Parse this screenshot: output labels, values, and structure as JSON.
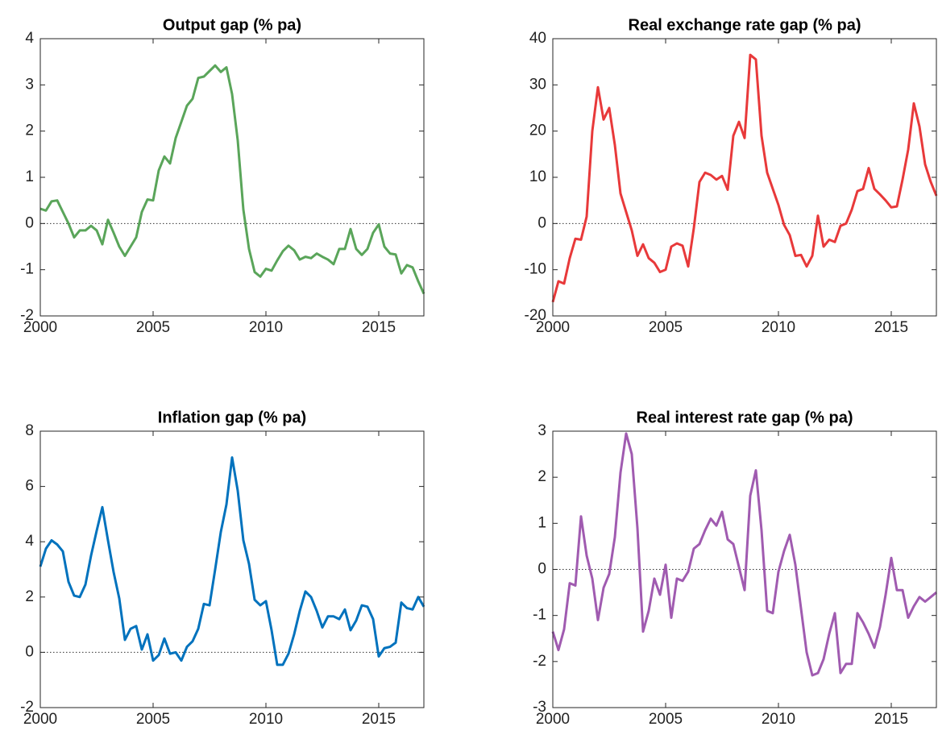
{
  "chart_data": [
    {
      "type": "line",
      "title": "Output gap (% pa)",
      "x": [
        2000,
        2000.25,
        2000.5,
        2000.75,
        2001,
        2001.25,
        2001.5,
        2001.75,
        2002,
        2002.25,
        2002.5,
        2002.75,
        2003,
        2003.25,
        2003.5,
        2003.75,
        2004,
        2004.25,
        2004.5,
        2004.75,
        2005,
        2005.25,
        2005.5,
        2005.75,
        2006,
        2006.25,
        2006.5,
        2006.75,
        2007,
        2007.25,
        2007.5,
        2007.75,
        2008,
        2008.25,
        2008.5,
        2008.75,
        2009,
        2009.25,
        2009.5,
        2009.75,
        2010,
        2010.25,
        2010.5,
        2010.75,
        2011,
        2011.25,
        2011.5,
        2011.75,
        2012,
        2012.25,
        2012.5,
        2012.75,
        2013,
        2013.25,
        2013.5,
        2013.75,
        2014,
        2014.25,
        2014.5,
        2014.75,
        2015,
        2015.25,
        2015.5,
        2015.75,
        2016,
        2016.25,
        2016.5,
        2016.75,
        2017
      ],
      "series": [
        {
          "color": "#5aa55a",
          "values": [
            0.32,
            0.28,
            0.48,
            0.5,
            0.25,
            0.0,
            -0.3,
            -0.15,
            -0.15,
            -0.05,
            -0.15,
            -0.45,
            0.08,
            -0.2,
            -0.5,
            -0.7,
            -0.5,
            -0.3,
            0.25,
            0.52,
            0.5,
            1.15,
            1.45,
            1.3,
            1.85,
            2.2,
            2.55,
            2.7,
            3.15,
            3.18,
            3.3,
            3.42,
            3.28,
            3.38,
            2.8,
            1.8,
            0.3,
            -0.55,
            -1.05,
            -1.15,
            -0.98,
            -1.02,
            -0.8,
            -0.6,
            -0.48,
            -0.58,
            -0.78,
            -0.72,
            -0.75,
            -0.65,
            -0.72,
            -0.78,
            -0.88,
            -0.55,
            -0.55,
            -0.12,
            -0.55,
            -0.68,
            -0.55,
            -0.2,
            -0.02,
            -0.5,
            -0.65,
            -0.67,
            -1.08,
            -0.9,
            -0.95,
            -1.25,
            -1.52
          ]
        }
      ],
      "xlim": [
        2000,
        2017
      ],
      "xticks": [
        2000,
        2005,
        2010,
        2015
      ],
      "ylim": [
        -2,
        4
      ],
      "yticks": [
        -2,
        -1,
        0,
        1,
        2,
        3,
        4
      ]
    },
    {
      "type": "line",
      "title": "Real exchange rate gap (% pa)",
      "x": [
        2000,
        2000.25,
        2000.5,
        2000.75,
        2001,
        2001.25,
        2001.5,
        2001.75,
        2002,
        2002.25,
        2002.5,
        2002.75,
        2003,
        2003.25,
        2003.5,
        2003.75,
        2004,
        2004.25,
        2004.5,
        2004.75,
        2005,
        2005.25,
        2005.5,
        2005.75,
        2006,
        2006.25,
        2006.5,
        2006.75,
        2007,
        2007.25,
        2007.5,
        2007.75,
        2008,
        2008.25,
        2008.5,
        2008.75,
        2009,
        2009.25,
        2009.5,
        2009.75,
        2010,
        2010.25,
        2010.5,
        2010.75,
        2011,
        2011.25,
        2011.5,
        2011.75,
        2012,
        2012.25,
        2012.5,
        2012.75,
        2013,
        2013.25,
        2013.5,
        2013.75,
        2014,
        2014.25,
        2014.5,
        2014.75,
        2015,
        2015.25,
        2015.5,
        2015.75,
        2016,
        2016.25,
        2016.5,
        2016.75,
        2017
      ],
      "series": [
        {
          "color": "#e8393a",
          "values": [
            -17,
            -12.5,
            -13,
            -7.5,
            -3.3,
            -3.5,
            1.5,
            20,
            29.5,
            22.5,
            25,
            17,
            6.5,
            2.5,
            -1.5,
            -7,
            -4.5,
            -7.5,
            -8.5,
            -10.5,
            -10,
            -5,
            -4.3,
            -4.8,
            -9.3,
            -1,
            9,
            11,
            10.5,
            9.5,
            10.3,
            7.3,
            19,
            22,
            18.5,
            36.5,
            35.5,
            19,
            11,
            7.5,
            4,
            -0.3,
            -2.5,
            -7,
            -6.8,
            -9.3,
            -7,
            1.7,
            -5,
            -3.5,
            -4,
            -0.5,
            0,
            3,
            7,
            7.5,
            12,
            7.5,
            6.3,
            5,
            3.5,
            3.7,
            9.5,
            16,
            26,
            21,
            12.8,
            9,
            6
          ]
        }
      ],
      "xlim": [
        2000,
        2017
      ],
      "xticks": [
        2000,
        2005,
        2010,
        2015
      ],
      "ylim": [
        -20,
        40
      ],
      "yticks": [
        -20,
        -10,
        0,
        10,
        20,
        30,
        40
      ]
    },
    {
      "type": "line",
      "title": "Inflation gap (% pa)",
      "x": [
        2000,
        2000.25,
        2000.5,
        2000.75,
        2001,
        2001.25,
        2001.5,
        2001.75,
        2002,
        2002.25,
        2002.5,
        2002.75,
        2003,
        2003.25,
        2003.5,
        2003.75,
        2004,
        2004.25,
        2004.5,
        2004.75,
        2005,
        2005.25,
        2005.5,
        2005.75,
        2006,
        2006.25,
        2006.5,
        2006.75,
        2007,
        2007.25,
        2007.5,
        2007.75,
        2008,
        2008.25,
        2008.5,
        2008.75,
        2009,
        2009.25,
        2009.5,
        2009.75,
        2010,
        2010.25,
        2010.5,
        2010.75,
        2011,
        2011.25,
        2011.5,
        2011.75,
        2012,
        2012.25,
        2012.5,
        2012.75,
        2013,
        2013.25,
        2013.5,
        2013.75,
        2014,
        2014.25,
        2014.5,
        2014.75,
        2015,
        2015.25,
        2015.5,
        2015.75,
        2016,
        2016.25,
        2016.5,
        2016.75,
        2017
      ],
      "series": [
        {
          "color": "#0072bd",
          "values": [
            3.1,
            3.75,
            4.05,
            3.9,
            3.65,
            2.55,
            2.05,
            2.0,
            2.45,
            3.5,
            4.4,
            5.25,
            4.05,
            2.9,
            1.95,
            0.45,
            0.85,
            0.95,
            0.1,
            0.65,
            -0.3,
            -0.1,
            0.5,
            -0.05,
            0.0,
            -0.3,
            0.2,
            0.4,
            0.85,
            1.75,
            1.7,
            3.0,
            4.35,
            5.35,
            7.05,
            5.85,
            4.05,
            3.2,
            1.9,
            1.7,
            1.85,
            0.8,
            -0.45,
            -0.45,
            -0.05,
            0.65,
            1.5,
            2.2,
            2.0,
            1.5,
            0.9,
            1.3,
            1.3,
            1.2,
            1.55,
            0.8,
            1.15,
            1.7,
            1.65,
            1.2,
            -0.15,
            0.15,
            0.2,
            0.35,
            1.8,
            1.6,
            1.55,
            2.0,
            1.65
          ]
        }
      ],
      "xlim": [
        2000,
        2017
      ],
      "xticks": [
        2000,
        2005,
        2010,
        2015
      ],
      "ylim": [
        -2,
        8
      ],
      "yticks": [
        -2,
        0,
        2,
        4,
        6,
        8
      ]
    },
    {
      "type": "line",
      "title": "Real interest rate gap (% pa)",
      "x": [
        2000,
        2000.25,
        2000.5,
        2000.75,
        2001,
        2001.25,
        2001.5,
        2001.75,
        2002,
        2002.25,
        2002.5,
        2002.75,
        2003,
        2003.25,
        2003.5,
        2003.75,
        2004,
        2004.25,
        2004.5,
        2004.75,
        2005,
        2005.25,
        2005.5,
        2005.75,
        2006,
        2006.25,
        2006.5,
        2006.75,
        2007,
        2007.25,
        2007.5,
        2007.75,
        2008,
        2008.25,
        2008.5,
        2008.75,
        2009,
        2009.25,
        2009.5,
        2009.75,
        2010,
        2010.25,
        2010.5,
        2010.75,
        2011,
        2011.25,
        2011.5,
        2011.75,
        2012,
        2012.25,
        2012.5,
        2012.75,
        2013,
        2013.25,
        2013.5,
        2013.75,
        2014,
        2014.25,
        2014.5,
        2014.75,
        2015,
        2015.25,
        2015.5,
        2015.75,
        2016,
        2016.25,
        2016.5,
        2016.75,
        2017
      ],
      "series": [
        {
          "color": "#a05bb0",
          "values": [
            -1.35,
            -1.75,
            -1.3,
            -0.3,
            -0.35,
            1.15,
            0.3,
            -0.2,
            -1.1,
            -0.4,
            -0.1,
            0.7,
            2.1,
            2.95,
            2.5,
            0.9,
            -1.35,
            -0.9,
            -0.2,
            -0.55,
            0.1,
            -1.05,
            -0.2,
            -0.25,
            -0.05,
            0.45,
            0.55,
            0.85,
            1.1,
            0.95,
            1.25,
            0.65,
            0.55,
            0.05,
            -0.45,
            1.6,
            2.15,
            0.85,
            -0.9,
            -0.95,
            -0.05,
            0.4,
            0.75,
            0.1,
            -0.85,
            -1.8,
            -2.3,
            -2.25,
            -1.95,
            -1.4,
            -0.95,
            -2.25,
            -2.05,
            -2.05,
            -0.95,
            -1.15,
            -1.4,
            -1.7,
            -1.25,
            -0.55,
            0.25,
            -0.45,
            -0.45,
            -1.05,
            -0.8,
            -0.6,
            -0.7,
            -0.6,
            -0.5
          ]
        }
      ],
      "xlim": [
        2000,
        2017
      ],
      "xticks": [
        2000,
        2005,
        2010,
        2015
      ],
      "ylim": [
        -3,
        3
      ],
      "yticks": [
        -3,
        -2,
        -1,
        0,
        1,
        2,
        3
      ]
    }
  ]
}
